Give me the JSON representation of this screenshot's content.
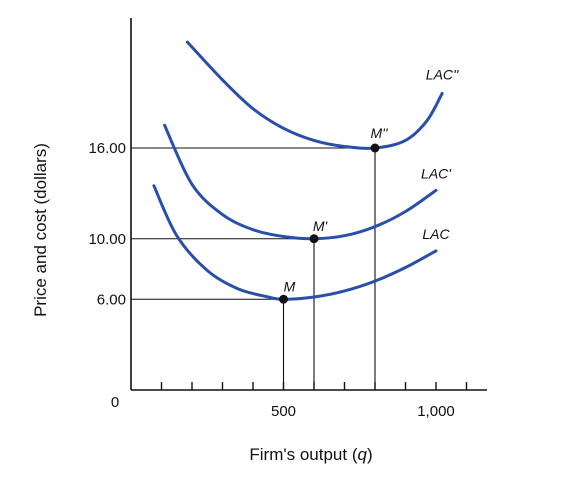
{
  "chart_data": {
    "type": "line",
    "title": "",
    "xlabel": "Firm's output (",
    "xlabel_var": "q",
    "xlabel_end": ")",
    "ylabel": "Price and cost (dollars)",
    "origin_label": "0",
    "xlim": [
      0,
      1150
    ],
    "ylim": [
      0,
      24.5
    ],
    "x_ticks": [
      100,
      200,
      300,
      400,
      500,
      600,
      700,
      800,
      900,
      1000,
      1100
    ],
    "x_tick_labels": [
      {
        "value": 500,
        "label": "500"
      },
      {
        "value": 1000,
        "label": "1,000"
      }
    ],
    "y_tick_labels": [
      {
        "value": 6,
        "label": "6.00"
      },
      {
        "value": 10,
        "label": "10.00"
      },
      {
        "value": 16,
        "label": "16.00"
      }
    ],
    "grid": false,
    "series": [
      {
        "name": "LAC",
        "color": "#2a4faa",
        "x": [
          75,
          150,
          250,
          350,
          450,
          500,
          600,
          700,
          800,
          900,
          1000
        ],
        "y": [
          13.5,
          10.2,
          7.9,
          6.7,
          6.15,
          6.0,
          6.15,
          6.55,
          7.2,
          8.1,
          9.2
        ]
      },
      {
        "name": "LAC'",
        "color": "#2a4faa",
        "x": [
          110,
          200,
          300,
          400,
          500,
          600,
          700,
          800,
          900,
          1000
        ],
        "y": [
          17.5,
          13.6,
          11.6,
          10.6,
          10.15,
          10.0,
          10.2,
          10.8,
          11.8,
          13.2
        ]
      },
      {
        "name": "LAC''",
        "color": "#2a4faa",
        "x": [
          185,
          300,
          400,
          500,
          600,
          700,
          800,
          900,
          970,
          1020
        ],
        "y": [
          23.0,
          20.5,
          18.6,
          17.3,
          16.5,
          16.1,
          16.0,
          16.5,
          17.8,
          19.6
        ]
      }
    ],
    "minimum_points": [
      {
        "label": "M",
        "x": 500,
        "y": 6
      },
      {
        "label": "M'",
        "x": 600,
        "y": 10
      },
      {
        "label": "M''",
        "x": 800,
        "y": 16
      }
    ]
  }
}
